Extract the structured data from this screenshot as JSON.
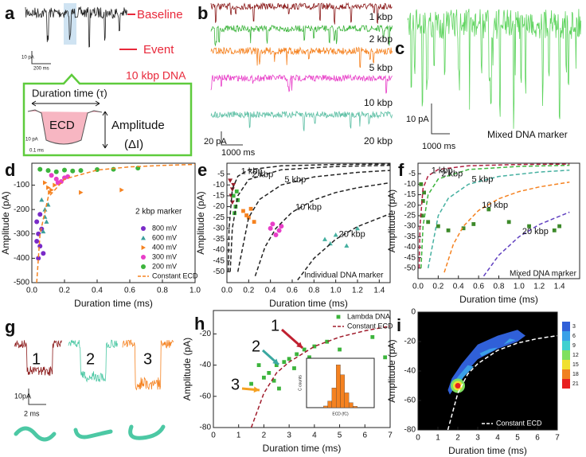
{
  "panel_labels": [
    "a",
    "b",
    "c",
    "d",
    "e",
    "f",
    "g",
    "h",
    "i"
  ],
  "panel_a": {
    "baseline": "Baseline",
    "event": "Event",
    "sample": "10 kbp DNA",
    "scale_current": "10 pA",
    "scale_time": "200 ms",
    "duration": "Duration time (τ)",
    "ecd": "ECD",
    "amplitude": "Amplitude",
    "delta": "(ΔI)",
    "inset_current": "10 pA",
    "inset_time": "0.1 ms"
  },
  "panel_b": {
    "traces": [
      "1 kbp",
      "2 kbp",
      "5 kbp",
      "10 kbp",
      "20 kbp"
    ],
    "scale_current": "20 pA",
    "scale_time": "1000 ms"
  },
  "panel_c": {
    "scale_current": "10 pA",
    "scale_time": "1000 ms",
    "caption": "Mixed DNA marker"
  },
  "panel_g": {
    "events": [
      "1",
      "2",
      "3"
    ],
    "scale_current": "10pA",
    "scale_time": "2 ms"
  },
  "chart_data": [
    {
      "type": "scatter",
      "xlabel": "Duration time (ms)",
      "ylabel": "Amplitude (pA)",
      "xlim": [
        0,
        1.0
      ],
      "xticks": [
        {
          "value": 0,
          "label": "0.0"
        },
        0.2,
        0.4,
        0.6,
        0.8,
        {
          "value": 1,
          "label": "1.0"
        }
      ],
      "ylim": [
        -500,
        -10
      ],
      "yticks": [
        -500,
        -400,
        -300,
        -200,
        -100
      ],
      "legend": "lower right",
      "annotations": [
        "2 kbp marker"
      ],
      "series": [
        {
          "name": "800 mV",
          "color": "#7a2bc8",
          "marker": "circle",
          "x": [
            0.03,
            0.04,
            0.05,
            0.04,
            0.06,
            0.05,
            0.03,
            0.07
          ],
          "values": [
            -250,
            -300,
            -350,
            -400,
            -280,
            -220,
            -330,
            -380
          ]
        },
        {
          "name": "600 mV",
          "color": "#3a9e9a",
          "marker": "triangle",
          "x": [
            0.06,
            0.08,
            0.09,
            0.07,
            0.1,
            0.08
          ],
          "values": [
            -160,
            -200,
            -250,
            -290,
            -180,
            -230
          ]
        },
        {
          "name": "400 mV",
          "color": "#f58220",
          "marker": "triangle-right",
          "x": [
            0.08,
            0.1,
            0.12,
            0.14,
            0.11,
            0.3,
            0.55
          ],
          "values": [
            -90,
            -110,
            -120,
            -100,
            -130,
            -130,
            -120
          ]
        },
        {
          "name": "300 mV",
          "color": "#e83ec8",
          "marker": "circle",
          "x": [
            0.12,
            0.15,
            0.18,
            0.2,
            0.16,
            0.22
          ],
          "values": [
            -60,
            -75,
            -85,
            -70,
            -90,
            -65
          ]
        },
        {
          "name": "200 mV",
          "color": "#3cb43c",
          "marker": "circle",
          "x": [
            0.05,
            0.1,
            0.15,
            0.2,
            0.25,
            0.3,
            0.4,
            0.5,
            0.65
          ],
          "values": [
            -35,
            -40,
            -45,
            -38,
            -42,
            -40,
            -36,
            -35,
            -30
          ]
        },
        {
          "name": "Constant ECD",
          "color": "#f58220",
          "line": "dashed",
          "x": [
            0.03,
            0.05,
            0.1,
            0.2,
            0.4,
            0.6,
            0.8,
            1.0
          ],
          "values": [
            -500,
            -300,
            -150,
            -75,
            -38,
            -25,
            -19,
            -15
          ]
        }
      ]
    },
    {
      "type": "scatter",
      "xlabel": "Duration time (ms)",
      "ylabel": "Amplitude (pA)",
      "xlim": [
        0,
        1.5
      ],
      "xticks": [
        {
          "value": 0,
          "label": "0.0"
        },
        0.2,
        0.4,
        0.6,
        0.8,
        {
          "value": 1,
          "label": "1.0"
        },
        1.2,
        1.4
      ],
      "ylim": [
        -55,
        0
      ],
      "yticks": [
        -50,
        -45,
        -40,
        -35,
        -30,
        -25,
        -20,
        -15,
        -10,
        -5
      ],
      "annotations": [
        "Individual DNA marker"
      ],
      "series": [
        {
          "color": "#9b1d2a",
          "marker": "triangle-down",
          "x": [
            0.03,
            0.05,
            0.04,
            0.06,
            0.05
          ],
          "values": [
            -8,
            -12,
            -15,
            -10,
            -18
          ]
        },
        {
          "color": "#3cb43c",
          "marker": "square",
          "x": [
            0.06,
            0.08,
            0.1,
            0.07,
            0.09
          ],
          "values": [
            -15,
            -20,
            -17,
            -23,
            -13
          ]
        },
        {
          "color": "#f58220",
          "marker": "square",
          "x": [
            0.15,
            0.2,
            0.25,
            0.18,
            0.22
          ],
          "values": [
            -22,
            -25,
            -27,
            -24,
            -21
          ]
        },
        {
          "color": "#e83ec8",
          "marker": "circle",
          "x": [
            0.4,
            0.45,
            0.5,
            0.48,
            0.42
          ],
          "values": [
            -30,
            -33,
            -29,
            -31,
            -28
          ]
        },
        {
          "color": "#45b0a0",
          "marker": "triangle",
          "x": [
            0.9,
            1.0,
            1.1,
            1.2,
            0.95
          ],
          "values": [
            -35,
            -33,
            -38,
            -30,
            -37
          ]
        },
        {
          "name": "1 kbp",
          "color": "#222",
          "line": "dashed",
          "x": [
            0.012,
            0.02,
            0.05,
            0.1,
            0.2,
            0.5,
            1.0,
            1.5
          ],
          "values": [
            -50,
            -30,
            -12,
            -6,
            -3,
            -1.2,
            -0.6,
            -0.4
          ]
        },
        {
          "name": "2 kbp",
          "color": "#222",
          "line": "dashed",
          "x": [
            0.03,
            0.05,
            0.1,
            0.2,
            0.5,
            1.0,
            1.5
          ],
          "values": [
            -50,
            -30,
            -15,
            -7.5,
            -3,
            -1.5,
            -1
          ]
        },
        {
          "name": "5 kbp",
          "color": "#222",
          "line": "dashed",
          "x": [
            0.1,
            0.2,
            0.3,
            0.5,
            0.8,
            1.2,
            1.5
          ],
          "values": [
            -50,
            -25,
            -16.7,
            -10,
            -6.3,
            -4.2,
            -3.3
          ]
        },
        {
          "name": "10 kbp",
          "color": "#222",
          "line": "dashed",
          "x": [
            0.26,
            0.35,
            0.45,
            0.6,
            0.8,
            1.0,
            1.2,
            1.5
          ],
          "values": [
            -52,
            -38.6,
            -30,
            -22.5,
            -16.9,
            -13.5,
            -11.3,
            -9
          ]
        },
        {
          "name": "20 kbp",
          "color": "#222",
          "line": "dashed",
          "x": [
            0.65,
            0.8,
            1.0,
            1.2,
            1.5
          ],
          "values": [
            -53.8,
            -43.8,
            -35,
            -29.2,
            -23.3
          ]
        }
      ]
    },
    {
      "type": "scatter",
      "xlabel": "Duration time (ms)",
      "ylabel": "Amplitude (pA)",
      "xlim": [
        0,
        1.6
      ],
      "xticks": [
        {
          "value": 0,
          "label": "0.0"
        },
        0.2,
        0.4,
        0.6,
        0.8,
        {
          "value": 1,
          "label": "1.0"
        },
        1.2,
        1.4
      ],
      "ylim": [
        -55,
        0
      ],
      "yticks": [
        -50,
        -45,
        -40,
        -35,
        -30,
        -25,
        -20,
        -15,
        -10,
        -5
      ],
      "annotations": [
        "Mixed DNA marker"
      ],
      "series": [
        {
          "color": "#3d8a2a",
          "marker": "square",
          "x": [
            0.03,
            0.05,
            0.04,
            0.06,
            0.1,
            0.2,
            0.3,
            0.45,
            0.55,
            0.7,
            0.9,
            1.1,
            1.35,
            1.4
          ],
          "values": [
            -10,
            -18,
            -25,
            -14,
            -28,
            -30,
            -32,
            -31,
            -29,
            -22,
            -28,
            -30,
            -32,
            -30
          ]
        },
        {
          "name": "1 kbp",
          "color": "#b02040",
          "line": "dashed",
          "x": [
            0.012,
            0.02,
            0.05,
            0.1,
            0.2,
            0.5,
            1.0,
            1.5
          ],
          "values": [
            -50,
            -30,
            -12,
            -6,
            -3,
            -1.2,
            -0.6,
            -0.4
          ]
        },
        {
          "name": "2 kbp",
          "color": "#3cb43c",
          "line": "dashed",
          "x": [
            0.03,
            0.05,
            0.1,
            0.2,
            0.5,
            1.0,
            1.5
          ],
          "values": [
            -50,
            -30,
            -15,
            -7.5,
            -3,
            -1.5,
            -1
          ]
        },
        {
          "name": "5 kbp",
          "color": "#45b0a0",
          "line": "dashed",
          "x": [
            0.1,
            0.2,
            0.3,
            0.5,
            0.8,
            1.2,
            1.5
          ],
          "values": [
            -50,
            -25,
            -16.7,
            -10,
            -6.3,
            -4.2,
            -3.3
          ]
        },
        {
          "name": "10 kbp",
          "color": "#f58220",
          "line": "dashed",
          "x": [
            0.26,
            0.35,
            0.45,
            0.6,
            0.8,
            1.0,
            1.2,
            1.5
          ],
          "values": [
            -52,
            -38.6,
            -30,
            -22.5,
            -16.9,
            -13.5,
            -11.3,
            -9
          ]
        },
        {
          "name": "20 kbp",
          "color": "#6040c0",
          "line": "dashed",
          "x": [
            0.65,
            0.8,
            1.0,
            1.2,
            1.5
          ],
          "values": [
            -53.8,
            -43.8,
            -35,
            -29.2,
            -23.3
          ]
        }
      ]
    },
    {
      "type": "scatter",
      "xlabel": "Duration time (ms)",
      "ylabel": "Amplitude (pA)",
      "xlim": [
        0,
        7
      ],
      "xticks": [
        0,
        1,
        2,
        3,
        4,
        5,
        6,
        7
      ],
      "ylim": [
        -80,
        -5
      ],
      "yticks": [
        -80,
        -60,
        -40,
        -20
      ],
      "legend": "upper right",
      "annotations": [
        "1",
        "2",
        "3"
      ],
      "series": [
        {
          "name": "Lambda DNA",
          "color": "#3cb43c",
          "marker": "square",
          "x": [
            1.5,
            2,
            2.2,
            2.5,
            2.8,
            3,
            3.3,
            3.6,
            4,
            4.5,
            5,
            2.6,
            1.8,
            3.8,
            6.8,
            6.3,
            3.2,
            2.4
          ],
          "values": [
            -52,
            -48,
            -45,
            -40,
            -38,
            -36,
            -33,
            -30,
            -28,
            -25,
            -30,
            -55,
            -40,
            -35,
            -35,
            -22,
            -42,
            -50
          ]
        },
        {
          "name": "Constant ECD",
          "color": "#a01c2c",
          "line": "dashed",
          "x": [
            1.5,
            2,
            2.5,
            3,
            4,
            5,
            6,
            7
          ],
          "values": [
            -80,
            -58,
            -45,
            -38,
            -28,
            -22,
            -18,
            -15
          ]
        }
      ]
    },
    {
      "type": "histogram",
      "xlabel": "ECD (fC)",
      "ylabel": "C counts",
      "color": "#f58220",
      "xlim": [
        700,
        1500
      ],
      "ylim": [
        0,
        300
      ],
      "bins": [
        900,
        950,
        1000,
        1050,
        1100,
        1150,
        1200,
        1250,
        1300
      ],
      "values": [
        10,
        40,
        120,
        260,
        200,
        90,
        30,
        8
      ]
    },
    {
      "type": "contour",
      "xlabel": "Duration time (ms)",
      "ylabel": "Amplitude (pA)",
      "xlim": [
        0,
        7
      ],
      "xticks": [
        0,
        1,
        2,
        3,
        4,
        5,
        6,
        7
      ],
      "ylim": [
        -80,
        0
      ],
      "yticks": [
        -80,
        -60,
        -40,
        -20,
        0
      ],
      "legend": "lower right",
      "colorbar": {
        "ticks": [
          3,
          6,
          9,
          12,
          15,
          18,
          21
        ],
        "colors": [
          "#3060d8",
          "#3aa0e8",
          "#40d0d0",
          "#80e060",
          "#f0e030",
          "#f08020",
          "#e82020"
        ]
      },
      "series": [
        {
          "name": "Constant ECD",
          "color": "#ffffff",
          "line": "dashed",
          "x": [
            1.5,
            2,
            2.5,
            3,
            4,
            5,
            6,
            7
          ],
          "values": [
            -80,
            -55,
            -42,
            -35,
            -26,
            -21,
            -18,
            -16
          ]
        }
      ]
    }
  ]
}
